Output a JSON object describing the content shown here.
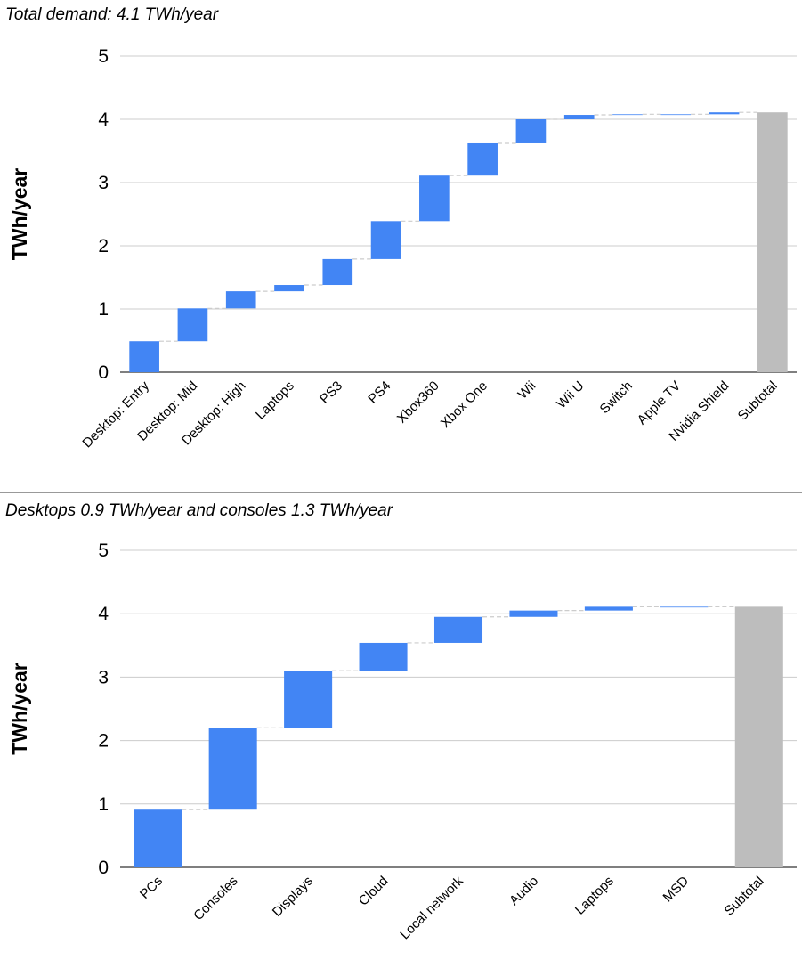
{
  "chart_data": [
    {
      "type": "waterfall",
      "title": "Total demand: 4.1 TWh/year",
      "ylabel": "TWh/year",
      "ylim": [
        0,
        5
      ],
      "yticks": [
        0,
        1,
        2,
        3,
        4,
        5
      ],
      "grid": true,
      "categories": [
        "Desktop: Entry",
        "Desktop: Mid",
        "Desktop: High",
        "Laptops",
        "PS3",
        "PS4",
        "Xbox360",
        "Xbox One",
        "Wii",
        "Wii U",
        "Switch",
        "Apple TV",
        "Nvidia Shield",
        "Subtotal"
      ],
      "values": [
        0.49,
        0.52,
        0.27,
        0.1,
        0.41,
        0.6,
        0.72,
        0.51,
        0.38,
        0.07,
        0.01,
        0.0,
        0.03,
        4.11
      ],
      "subtotal_index": 13,
      "colors": {
        "increase": "#4285f4",
        "subtotal": "#bdbdbd",
        "connector": "#cccccc",
        "grid": "#cccccc"
      }
    },
    {
      "type": "waterfall",
      "title": "Desktops 0.9 TWh/year and consoles 1.3 TWh/year",
      "ylabel": "TWh/year",
      "ylim": [
        0,
        5
      ],
      "yticks": [
        0,
        1,
        2,
        3,
        4,
        5
      ],
      "grid": true,
      "categories": [
        "PCs",
        "Consoles",
        "Displays",
        "Cloud",
        "Local network",
        "Audio",
        "Laptops",
        "MSD",
        "Subtotal"
      ],
      "values": [
        0.91,
        1.29,
        0.9,
        0.44,
        0.41,
        0.1,
        0.06,
        0.0,
        4.11
      ],
      "subtotal_index": 8,
      "colors": {
        "increase": "#4285f4",
        "subtotal": "#bdbdbd",
        "connector": "#cccccc",
        "grid": "#cccccc"
      }
    }
  ]
}
